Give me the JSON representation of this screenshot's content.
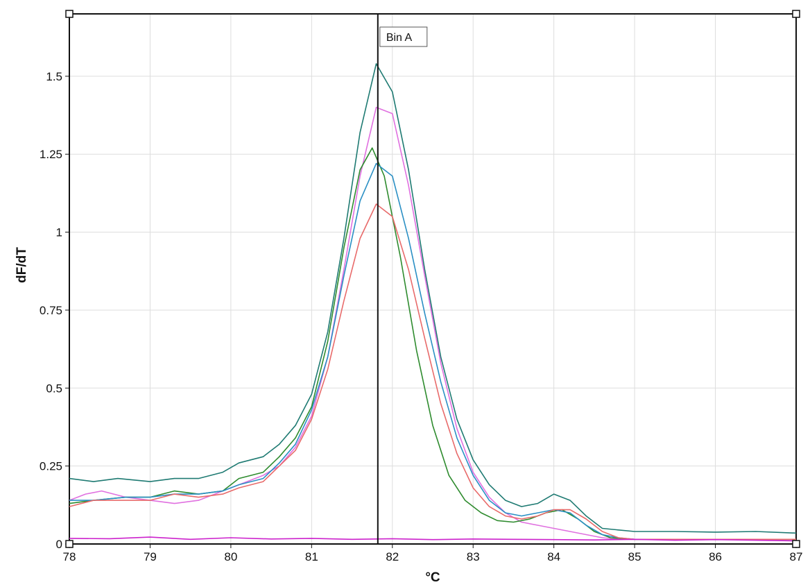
{
  "chart_data": {
    "type": "line",
    "title": "",
    "xlabel": "°C",
    "ylabel": "dF/dT",
    "xlim": [
      78,
      87
    ],
    "ylim": [
      0,
      1.7
    ],
    "grid": true,
    "legend": "none",
    "x_ticks": [
      78,
      79,
      80,
      81,
      82,
      83,
      84,
      85,
      86,
      87
    ],
    "x_tick_labels": [
      "78",
      "79",
      "80",
      "81",
      "82",
      "83",
      "84",
      "85",
      "86",
      "87"
    ],
    "y_ticks": [
      0,
      0.25,
      0.5,
      0.75,
      1,
      1.25,
      1.5
    ],
    "y_tick_labels": [
      "0",
      "0.25",
      "0.5",
      "0.75",
      "1",
      "1.25",
      "1.5"
    ],
    "marker": {
      "label": "Bin A",
      "x": 81.82
    },
    "series": [
      {
        "color": "#1e7a72",
        "x": [
          78.0,
          78.3,
          78.6,
          79.0,
          79.3,
          79.6,
          79.9,
          80.1,
          80.4,
          80.6,
          80.8,
          81.0,
          81.2,
          81.4,
          81.6,
          81.8,
          82.0,
          82.2,
          82.4,
          82.6,
          82.8,
          83.0,
          83.2,
          83.4,
          83.6,
          83.8,
          84.0,
          84.2,
          84.4,
          84.6,
          84.8,
          85.0,
          85.5,
          86.0,
          86.5,
          87.0
        ],
        "y": [
          0.21,
          0.2,
          0.21,
          0.2,
          0.21,
          0.21,
          0.23,
          0.26,
          0.28,
          0.32,
          0.38,
          0.48,
          0.68,
          0.98,
          1.32,
          1.54,
          1.45,
          1.2,
          0.88,
          0.6,
          0.4,
          0.27,
          0.19,
          0.14,
          0.12,
          0.13,
          0.16,
          0.14,
          0.09,
          0.05,
          0.045,
          0.04,
          0.04,
          0.038,
          0.04,
          0.035
        ]
      },
      {
        "color": "#e070e0",
        "x": [
          78.0,
          78.2,
          78.4,
          78.7,
          79.0,
          79.3,
          79.6,
          79.9,
          80.1,
          80.4,
          80.6,
          80.8,
          81.0,
          81.2,
          81.4,
          81.6,
          81.8,
          82.0,
          82.2,
          82.4,
          82.6,
          82.8,
          83.0,
          83.2,
          83.4,
          83.6,
          83.8,
          84.0,
          84.2,
          84.4,
          84.6,
          84.8,
          85.0,
          85.5,
          86.0,
          86.5,
          87.0
        ],
        "y": [
          0.14,
          0.16,
          0.17,
          0.15,
          0.14,
          0.13,
          0.14,
          0.17,
          0.19,
          0.22,
          0.25,
          0.31,
          0.41,
          0.6,
          0.88,
          1.18,
          1.4,
          1.38,
          1.15,
          0.86,
          0.58,
          0.37,
          0.23,
          0.15,
          0.1,
          0.07,
          0.06,
          0.05,
          0.04,
          0.03,
          0.02,
          0.015,
          0.015,
          0.015,
          0.015,
          0.015,
          0.015
        ]
      },
      {
        "color": "#2e8b2e",
        "x": [
          78.0,
          78.3,
          78.7,
          79.0,
          79.3,
          79.6,
          79.9,
          80.1,
          80.4,
          80.6,
          80.8,
          81.0,
          81.2,
          81.4,
          81.6,
          81.75,
          81.9,
          82.1,
          82.3,
          82.5,
          82.7,
          82.9,
          83.1,
          83.3,
          83.5,
          83.7,
          83.9,
          84.1,
          84.3,
          84.5,
          84.7,
          85.0,
          85.5,
          86.0,
          86.5,
          87.0
        ],
        "y": [
          0.13,
          0.14,
          0.15,
          0.15,
          0.17,
          0.16,
          0.17,
          0.21,
          0.23,
          0.28,
          0.34,
          0.44,
          0.65,
          0.95,
          1.2,
          1.27,
          1.18,
          0.92,
          0.62,
          0.38,
          0.22,
          0.14,
          0.1,
          0.075,
          0.07,
          0.08,
          0.1,
          0.11,
          0.08,
          0.04,
          0.02,
          0.015,
          0.015,
          0.015,
          0.015,
          0.015
        ]
      },
      {
        "color": "#2a8fc4",
        "x": [
          78.0,
          78.3,
          78.7,
          79.0,
          79.3,
          79.6,
          79.9,
          80.1,
          80.4,
          80.6,
          80.8,
          81.0,
          81.2,
          81.4,
          81.6,
          81.8,
          82.0,
          82.2,
          82.4,
          82.6,
          82.8,
          83.0,
          83.2,
          83.4,
          83.6,
          83.8,
          84.0,
          84.2,
          84.4,
          84.6,
          84.8,
          85.0,
          85.5,
          86.0,
          86.5,
          87.0
        ],
        "y": [
          0.14,
          0.14,
          0.15,
          0.15,
          0.16,
          0.16,
          0.17,
          0.19,
          0.21,
          0.26,
          0.32,
          0.43,
          0.6,
          0.86,
          1.1,
          1.22,
          1.18,
          0.98,
          0.74,
          0.52,
          0.34,
          0.22,
          0.14,
          0.1,
          0.09,
          0.1,
          0.11,
          0.1,
          0.06,
          0.03,
          0.02,
          0.015,
          0.015,
          0.015,
          0.015,
          0.015
        ]
      },
      {
        "color": "#e86a6a",
        "x": [
          78.0,
          78.3,
          78.7,
          79.0,
          79.3,
          79.6,
          79.9,
          80.1,
          80.4,
          80.6,
          80.8,
          81.0,
          81.2,
          81.4,
          81.6,
          81.8,
          82.0,
          82.2,
          82.4,
          82.6,
          82.8,
          83.0,
          83.2,
          83.4,
          83.6,
          83.8,
          84.0,
          84.2,
          84.4,
          84.6,
          84.8,
          85.0,
          85.5,
          86.0,
          86.5,
          87.0
        ],
        "y": [
          0.12,
          0.14,
          0.14,
          0.14,
          0.16,
          0.15,
          0.16,
          0.18,
          0.2,
          0.25,
          0.3,
          0.4,
          0.56,
          0.78,
          0.98,
          1.09,
          1.05,
          0.88,
          0.66,
          0.45,
          0.29,
          0.18,
          0.12,
          0.09,
          0.08,
          0.09,
          0.11,
          0.11,
          0.08,
          0.04,
          0.02,
          0.015,
          0.015,
          0.015,
          0.015,
          0.015
        ]
      },
      {
        "color": "#cc22cc",
        "x": [
          78.0,
          78.5,
          79.0,
          79.5,
          80.0,
          80.5,
          81.0,
          81.5,
          82.0,
          82.5,
          83.0,
          83.5,
          84.0,
          84.5,
          85.0,
          85.5,
          86.0,
          86.5,
          87.0
        ],
        "y": [
          0.018,
          0.017,
          0.022,
          0.015,
          0.02,
          0.016,
          0.018,
          0.015,
          0.017,
          0.014,
          0.016,
          0.015,
          0.014,
          0.013,
          0.015,
          0.012,
          0.014,
          0.012,
          0.01
        ]
      }
    ]
  }
}
